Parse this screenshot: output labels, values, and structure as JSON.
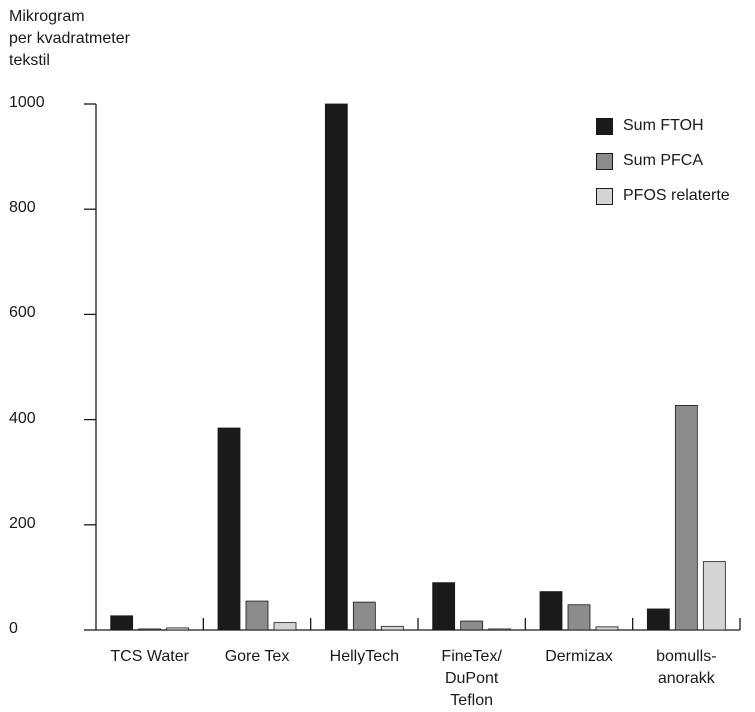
{
  "chart_data": {
    "type": "bar",
    "ylabel_lines": [
      "Mikrogram",
      "per kvadratmeter",
      "tekstil"
    ],
    "xlabel": "",
    "ylim": [
      0,
      1000
    ],
    "yticks": [
      0,
      200,
      400,
      600,
      800,
      1000
    ],
    "grid": false,
    "legend_position": "top-right",
    "categories": [
      [
        "TCS Water"
      ],
      [
        "Gore Tex"
      ],
      [
        "HellyTech"
      ],
      [
        "FineTex/",
        "DuPont",
        "Teflon"
      ],
      [
        "Dermizax"
      ],
      [
        "bomulls-",
        "anorakk"
      ]
    ],
    "series": [
      {
        "name": "Sum FTOH",
        "color": "#1a1a1a",
        "values": [
          27,
          384,
          1000,
          90,
          73,
          40
        ]
      },
      {
        "name": "Sum PFCA",
        "color": "#8c8c8c",
        "values": [
          2,
          55,
          53,
          17,
          48,
          427
        ]
      },
      {
        "name": "PFOS relaterte",
        "color": "#d4d4d4",
        "values": [
          4,
          14,
          7,
          2,
          6,
          130
        ]
      }
    ]
  }
}
